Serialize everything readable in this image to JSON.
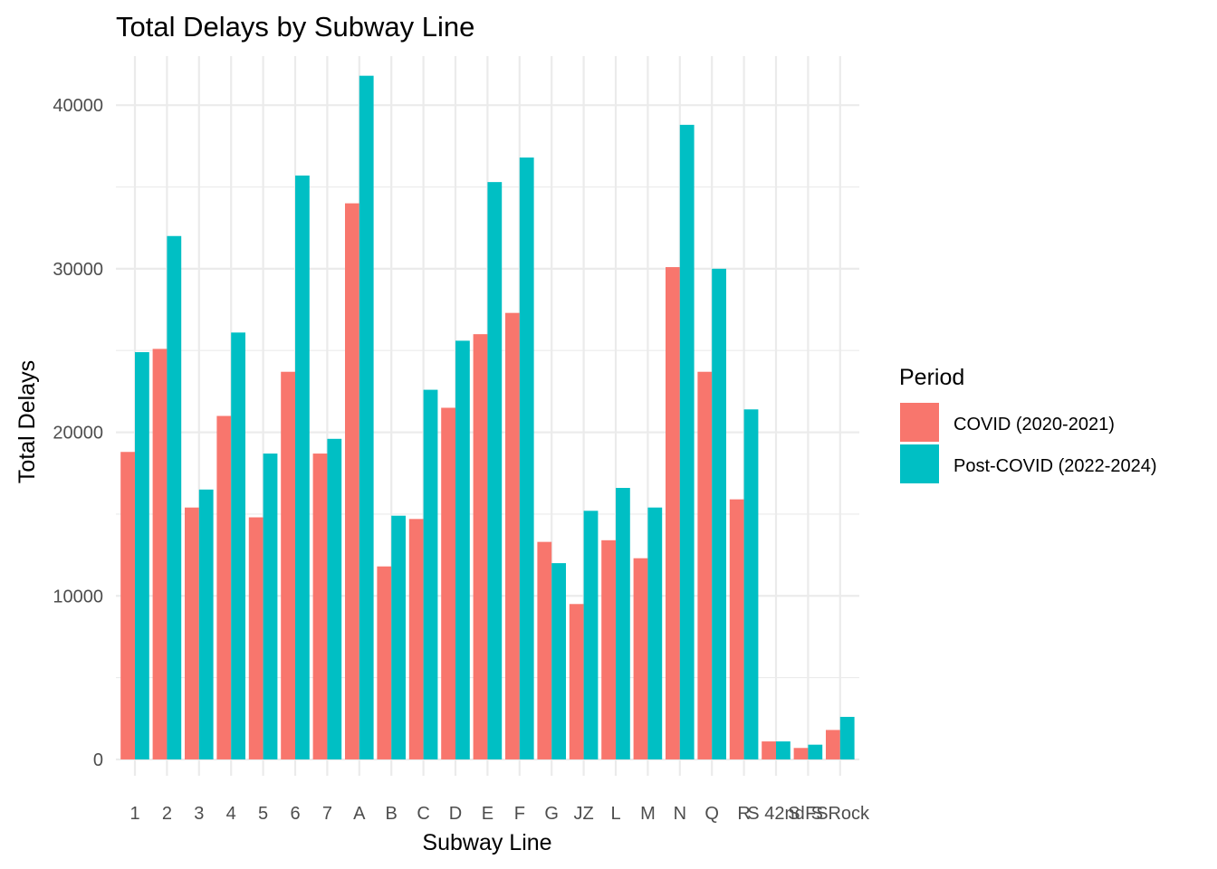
{
  "chart_data": {
    "type": "bar",
    "title": "Total Delays by Subway Line",
    "xlabel": "Subway Line",
    "ylabel": "Total Delays",
    "categories": [
      "1",
      "2",
      "3",
      "4",
      "5",
      "6",
      "7",
      "A",
      "B",
      "C",
      "D",
      "E",
      "F",
      "G",
      "JZ",
      "L",
      "M",
      "N",
      "Q",
      "R",
      "S 42nd",
      "S FS",
      "S Rock"
    ],
    "series": [
      {
        "name": "COVID (2020-2021)",
        "color": "#F8766D",
        "values": [
          18800,
          25100,
          15400,
          21000,
          14800,
          23700,
          18700,
          34000,
          11800,
          14700,
          21500,
          26000,
          27300,
          13300,
          9500,
          13400,
          12300,
          30100,
          23700,
          15900,
          1100,
          700,
          1800
        ]
      },
      {
        "name": "Post-COVID (2022-2024)",
        "color": "#00BFC4",
        "values": [
          24900,
          32000,
          16500,
          26100,
          18700,
          35700,
          19600,
          41800,
          14900,
          22600,
          25600,
          35300,
          36800,
          12000,
          15200,
          16600,
          15400,
          38800,
          30000,
          21400,
          1100,
          900,
          2600
        ]
      }
    ],
    "yticks": [
      0,
      10000,
      20000,
      30000,
      40000
    ],
    "ylim": [
      -1000,
      43000
    ],
    "grid": true,
    "legend": {
      "title": "Period",
      "position": "right"
    }
  }
}
